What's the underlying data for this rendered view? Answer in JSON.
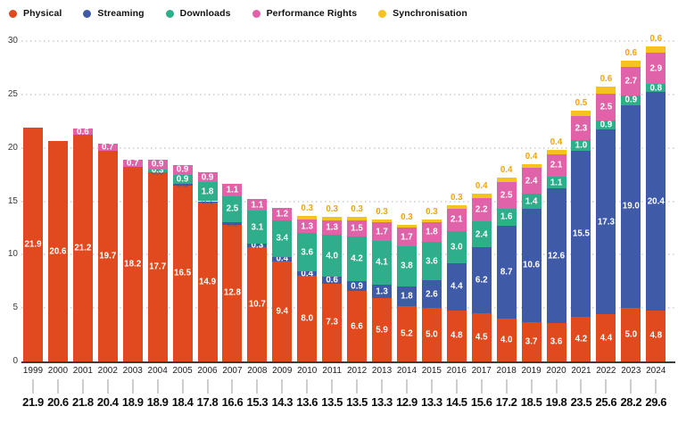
{
  "legend": {
    "items": [
      {
        "label": "Physical",
        "color": "#e14a1e"
      },
      {
        "label": "Streaming",
        "color": "#3f5aa7"
      },
      {
        "label": "Downloads",
        "color": "#2fae8b"
      },
      {
        "label": "Performance Rights",
        "color": "#e062a8"
      },
      {
        "label": "Synchronisation",
        "color": "#f6c31c"
      }
    ]
  },
  "colors": {
    "sync_label_text": "#eda60f",
    "faint_streaming_label": "#3e59a7",
    "grid": "#d9d9d9",
    "baseline": "#3c3c3c",
    "axis_text": "#3a3a3a",
    "year_text": "#1c1c1c",
    "total_text": "#0d0d0d"
  },
  "chart_data": {
    "type": "bar",
    "stacked": true,
    "legend_position": "top",
    "grid": "dotted-horizontal",
    "ylim": [
      0,
      30
    ],
    "y_ticks": [
      0,
      5,
      10,
      15,
      20,
      25,
      30
    ],
    "categories": [
      "1999",
      "2000",
      "2001",
      "2002",
      "2003",
      "2004",
      "2005",
      "2006",
      "2007",
      "2008",
      "2009",
      "2010",
      "2011",
      "2012",
      "2013",
      "2014",
      "2015",
      "2016",
      "2017",
      "2018",
      "2019",
      "2020",
      "2021",
      "2022",
      "2023",
      "2024"
    ],
    "series": [
      {
        "name": "Physical",
        "color": "#e14a1e",
        "values": [
          21.9,
          20.6,
          21.2,
          19.7,
          18.2,
          17.7,
          16.5,
          14.9,
          12.8,
          10.7,
          9.4,
          8.0,
          7.3,
          6.6,
          5.9,
          5.2,
          5.0,
          4.8,
          4.5,
          4.0,
          3.7,
          3.6,
          4.2,
          4.4,
          5.0,
          4.8
        ],
        "labels": [
          "21.9",
          "20.6",
          "21.2",
          "19.7",
          "18.2",
          "17.7",
          "16.5",
          "14.9",
          "12.8",
          "10.7",
          "9.4",
          "8.0",
          "7.3",
          "6.6",
          "5.9",
          "5.2",
          "5.0",
          "4.8",
          "4.5",
          "4.0",
          "3.7",
          "3.6",
          "4.2",
          "4.4",
          "5.0",
          "4.8"
        ]
      },
      {
        "name": "Streaming",
        "color": "#3f5aa7",
        "values": [
          0,
          0,
          0,
          0,
          0,
          0,
          0.1,
          0.1,
          0.2,
          0.3,
          0.4,
          0.4,
          0.6,
          0.9,
          1.3,
          1.8,
          2.6,
          4.4,
          6.2,
          8.7,
          10.6,
          12.6,
          15.5,
          17.3,
          19.0,
          20.4
        ],
        "labels": [
          "",
          "",
          "",
          "",
          "",
          "0.0",
          "0.1",
          "0.1",
          "0.2",
          "0.3",
          "0.4",
          "0.4",
          "0.6",
          "0.9",
          "1.3",
          "1.8",
          "2.6",
          "4.4",
          "6.2",
          "8.7",
          "10.6",
          "12.6",
          "15.5",
          "17.3",
          "19.0",
          "20.4"
        ]
      },
      {
        "name": "Downloads",
        "color": "#2fae8b",
        "values": [
          0,
          0,
          0,
          0,
          0,
          0.3,
          0.9,
          1.8,
          2.5,
          3.1,
          3.4,
          3.6,
          4.0,
          4.2,
          4.1,
          3.8,
          3.6,
          3.0,
          2.4,
          1.6,
          1.4,
          1.1,
          1.0,
          0.9,
          0.9,
          0.8
        ],
        "labels": [
          "",
          "",
          "",
          "",
          "",
          "0.3",
          "0.9",
          "1.8",
          "2.5",
          "3.1",
          "3.4",
          "3.6",
          "4.0",
          "4.2",
          "4.1",
          "3.8",
          "3.6",
          "3.0",
          "2.4",
          "1.6",
          "1.4",
          "1.1",
          "1.0",
          "0.9",
          "0.9",
          "0.8"
        ]
      },
      {
        "name": "Performance Rights",
        "color": "#e062a8",
        "values": [
          0,
          0,
          0.6,
          0.7,
          0.7,
          0.9,
          0.9,
          0.9,
          1.1,
          1.1,
          1.2,
          1.3,
          1.3,
          1.5,
          1.7,
          1.7,
          1.8,
          2.1,
          2.2,
          2.5,
          2.4,
          2.1,
          2.3,
          2.5,
          2.7,
          2.9
        ],
        "labels": [
          "",
          "",
          "0.6",
          "0.7",
          "0.7",
          "0.9",
          "0.9",
          "0.9",
          "1.1",
          "1.1",
          "1.2",
          "1.3",
          "1.3",
          "1.5",
          "1.7",
          "1.7",
          "1.8",
          "2.1",
          "2.2",
          "2.5",
          "2.4",
          "2.1",
          "2.3",
          "2.5",
          "2.7",
          "2.9"
        ]
      },
      {
        "name": "Synchronisation",
        "color": "#f6c31c",
        "values": [
          0,
          0,
          0,
          0,
          0,
          0,
          0,
          0,
          0,
          0,
          0,
          0.3,
          0.3,
          0.3,
          0.3,
          0.3,
          0.3,
          0.3,
          0.4,
          0.4,
          0.4,
          0.4,
          0.5,
          0.6,
          0.6,
          0.6
        ],
        "labels": [
          "",
          "",
          "",
          "",
          "",
          "",
          "",
          "",
          "",
          "",
          "",
          "0.3",
          "0.3",
          "0.3",
          "0.3",
          "0.3",
          "0.3",
          "0.3",
          "0.4",
          "0.4",
          "0.4",
          "0.4",
          "0.5",
          "0.6",
          "0.6",
          "0.6"
        ]
      }
    ],
    "totals": [
      "21.9",
      "20.6",
      "21.8",
      "20.4",
      "18.9",
      "18.9",
      "18.4",
      "17.8",
      "16.6",
      "15.3",
      "14.3",
      "13.6",
      "13.5",
      "13.5",
      "13.3",
      "12.9",
      "13.3",
      "14.5",
      "15.6",
      "17.2",
      "18.5",
      "19.8",
      "23.5",
      "25.6",
      "28.2",
      "29.6"
    ]
  }
}
